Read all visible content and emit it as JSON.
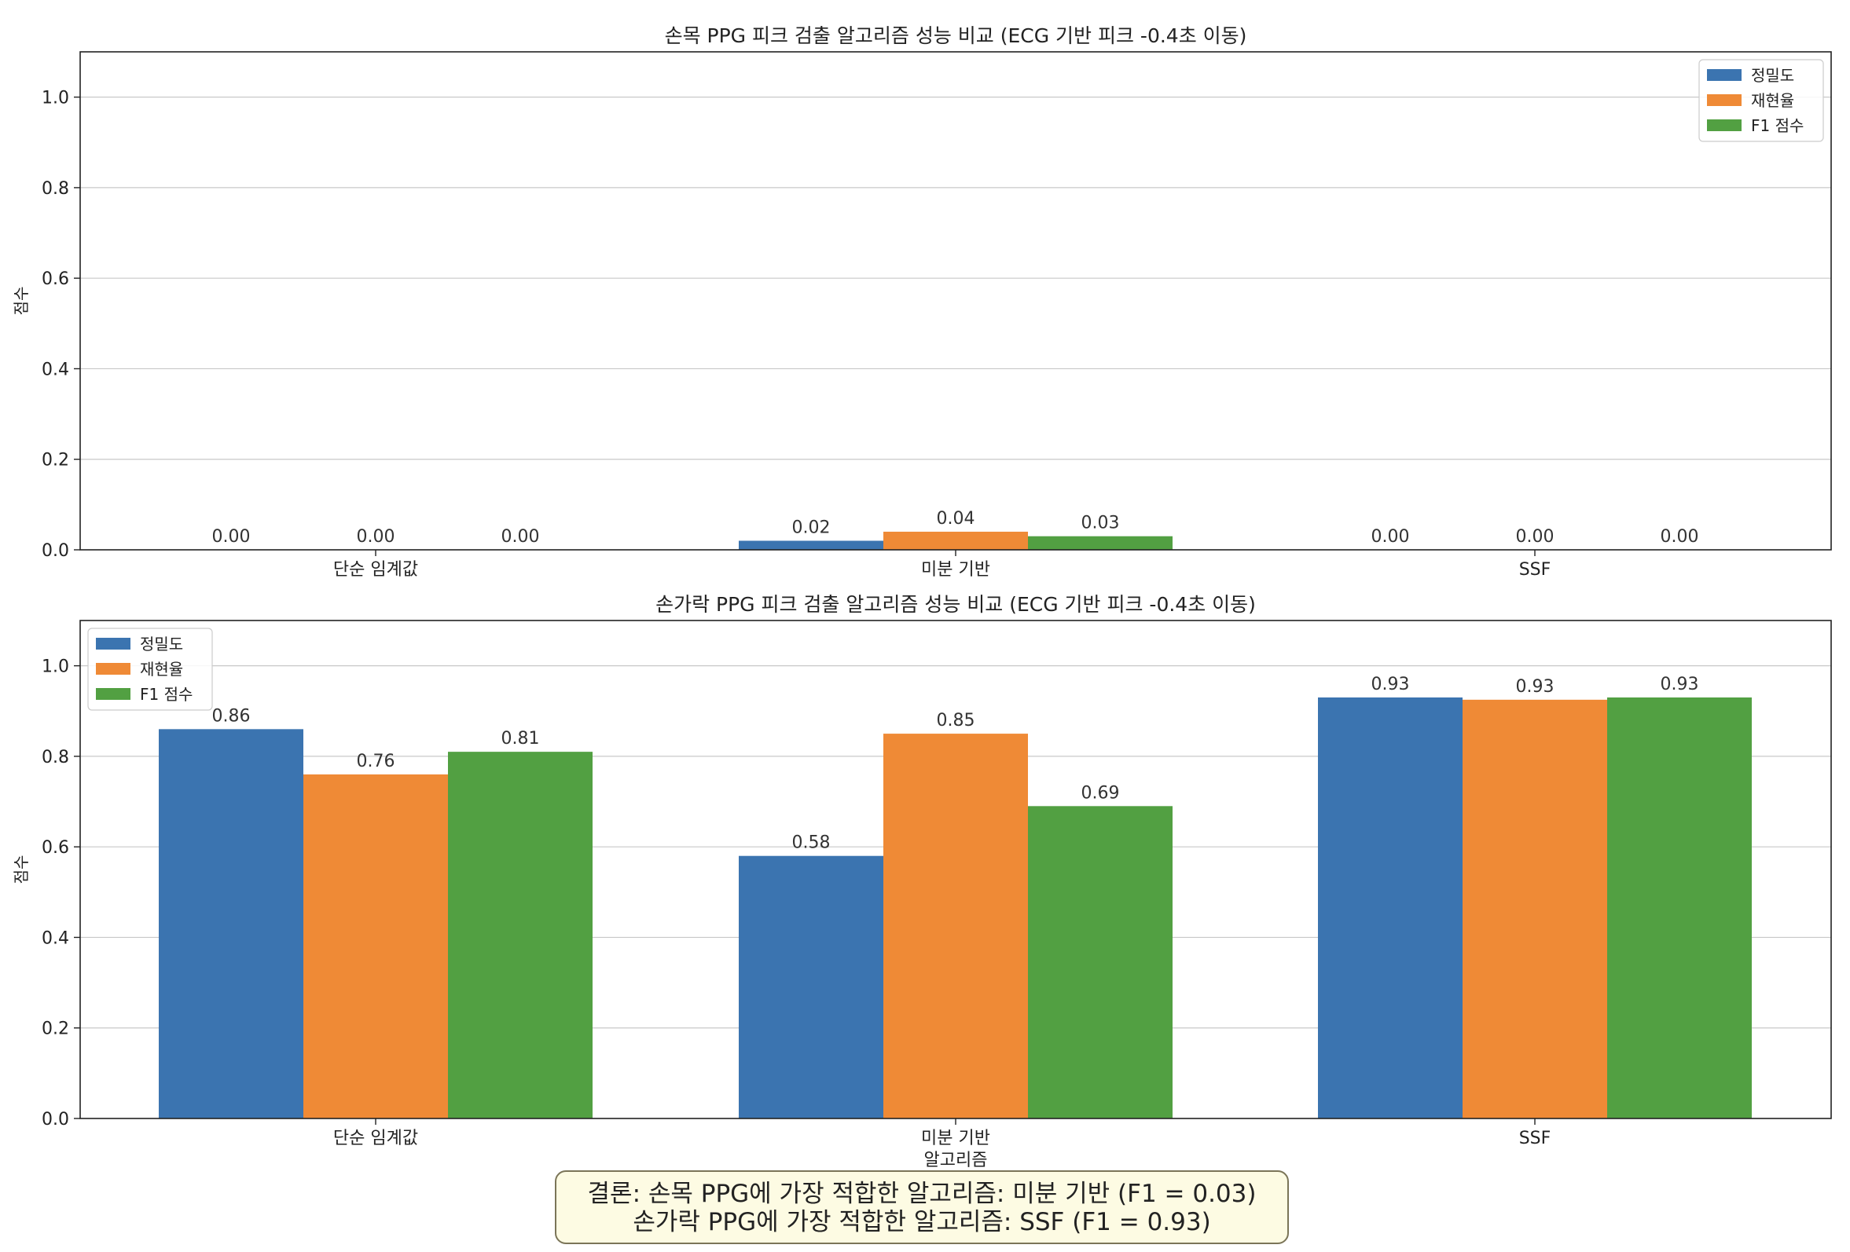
{
  "colors": {
    "precision": "#3b74b0",
    "recall": "#ef8a36",
    "f1": "#52a042"
  },
  "chart_data": [
    {
      "type": "bar",
      "title": "손목 PPG 피크 검출 알고리즘 성능 비교 (ECG 기반 피크 -0.4초 이동)",
      "categories": [
        "단순 임계값",
        "미분 기반",
        "SSF"
      ],
      "ylabel": "점수",
      "ylim": [
        0,
        1.1
      ],
      "yticks": [
        "0.0",
        "0.2",
        "0.4",
        "0.6",
        "0.8",
        "1.0"
      ],
      "legend_position": "top-right",
      "series": [
        {
          "name": "정밀도",
          "values": [
            0.0,
            0.02,
            0.0
          ],
          "labels": [
            "0.00",
            "0.02",
            "0.00"
          ]
        },
        {
          "name": "재현율",
          "values": [
            0.0,
            0.04,
            0.0
          ],
          "labels": [
            "0.00",
            "0.04",
            "0.00"
          ]
        },
        {
          "name": "F1 점수",
          "values": [
            0.0,
            0.03,
            0.0
          ],
          "labels": [
            "0.00",
            "0.03",
            "0.00"
          ]
        }
      ]
    },
    {
      "type": "bar",
      "title": "손가락 PPG 피크 검출 알고리즘 성능 비교 (ECG 기반 피크 -0.4초 이동)",
      "categories": [
        "단순 임계값",
        "미분 기반\n알고리즘",
        "SSF"
      ],
      "ylabel": "점수",
      "ylim": [
        0,
        1.1
      ],
      "yticks": [
        "0.0",
        "0.2",
        "0.4",
        "0.6",
        "0.8",
        "1.0"
      ],
      "legend_position": "top-left",
      "series": [
        {
          "name": "정밀도",
          "values": [
            0.86,
            0.58,
            0.93
          ],
          "labels": [
            "0.86",
            "0.58",
            "0.93"
          ]
        },
        {
          "name": "재현율",
          "values": [
            0.76,
            0.85,
            0.925
          ],
          "labels": [
            "0.76",
            "0.85",
            "0.93"
          ]
        },
        {
          "name": "F1 점수",
          "values": [
            0.81,
            0.69,
            0.93
          ],
          "labels": [
            "0.81",
            "0.69",
            "0.93"
          ]
        }
      ]
    }
  ],
  "conclusion": {
    "line1": "결론: 손목 PPG에 가장 적합한 알고리즘: 미분 기반 (F1 = 0.03)",
    "line2": "손가락 PPG에 가장 적합한 알고리즘: SSF (F1 = 0.93)"
  }
}
